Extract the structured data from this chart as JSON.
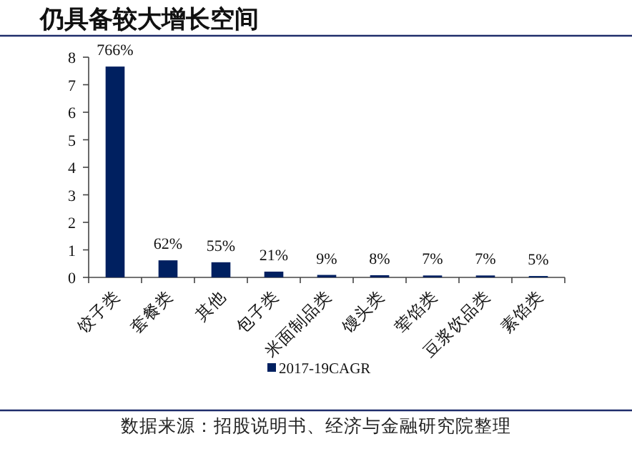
{
  "chart_data": {
    "type": "bar",
    "title": "仍具备较大增长空间",
    "categories": [
      "饺子类",
      "套餐类",
      "其他",
      "包子类",
      "米面制品类",
      "馒头类",
      "荤馅类",
      "豆浆饮品类",
      "素馅类"
    ],
    "series": [
      {
        "name": "2017-19CAGR",
        "color": "#002060",
        "values": [
          7.66,
          0.62,
          0.55,
          0.21,
          0.09,
          0.08,
          0.07,
          0.07,
          0.05
        ],
        "value_labels": [
          "766%",
          "62%",
          "55%",
          "21%",
          "9%",
          "8%",
          "7%",
          "7%",
          "5%"
        ]
      }
    ],
    "ylim": [
      0,
      8
    ],
    "yticks": [
      0,
      1,
      2,
      3,
      4,
      5,
      6,
      7,
      8
    ],
    "legend": "bottom",
    "annotations": [
      "数据来源：招股说明书、经济与金融研究院整理"
    ]
  }
}
